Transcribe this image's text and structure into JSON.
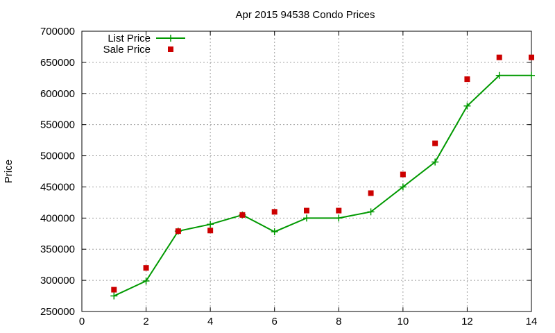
{
  "chart_data": {
    "type": "line",
    "title": "Apr 2015 94538 Condo Prices",
    "xlabel": "",
    "ylabel": "Price",
    "xlim": [
      0,
      14
    ],
    "ylim": [
      250000,
      700000
    ],
    "xticks": [
      0,
      2,
      4,
      6,
      8,
      10,
      12,
      14
    ],
    "yticks": [
      250000,
      300000,
      350000,
      400000,
      450000,
      500000,
      550000,
      600000,
      650000,
      700000
    ],
    "grid": true,
    "legend_position": "top-left",
    "series": [
      {
        "name": "List Price",
        "style": "line-plus",
        "color": "#009900",
        "x": [
          1,
          2,
          3,
          4,
          5,
          6,
          7,
          8,
          9,
          10,
          11,
          12,
          13,
          14
        ],
        "y": [
          275000,
          299000,
          379000,
          390000,
          405000,
          378000,
          400000,
          400000,
          410000,
          450000,
          490000,
          580000,
          629000,
          629000
        ]
      },
      {
        "name": "Sale Price",
        "style": "square-points",
        "color": "#cc0000",
        "x": [
          1,
          2,
          3,
          4,
          5,
          6,
          7,
          8,
          9,
          10,
          11,
          12,
          13,
          14
        ],
        "y": [
          285000,
          320000,
          379000,
          380000,
          405000,
          410000,
          412000,
          412000,
          440000,
          470000,
          520000,
          623000,
          658000,
          658000
        ]
      }
    ]
  }
}
